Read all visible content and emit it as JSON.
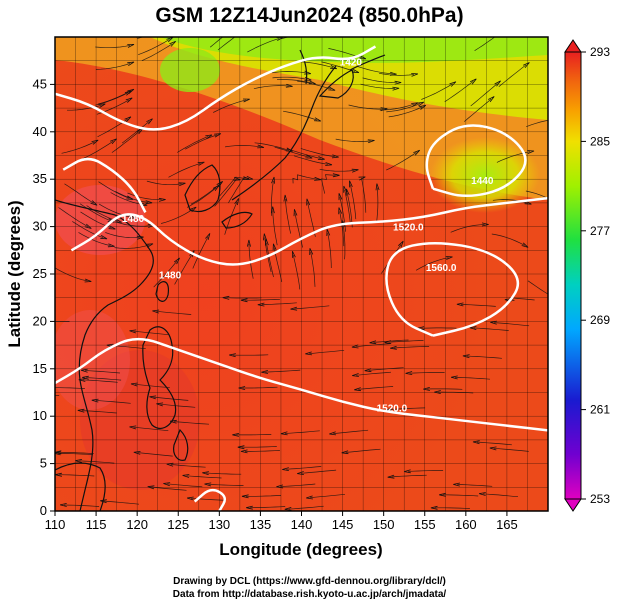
{
  "figure": {
    "title": "GSM 12Z14Jun2024 (850.0hPa)",
    "xlabel": "Longitude (degrees)",
    "ylabel": "Latitude  (degrees)",
    "credit_lines": [
      "Drawing by DCL (https://www.gfd-dennou.org/library/dcl/)",
      "Data from http://database.rish.kyoto-u.ac.jp/arch/jmadata/"
    ]
  },
  "chart_data": {
    "type": "heatmap",
    "field": "temperature (color) with height contours and wind streamlines",
    "xlim": [
      110,
      170
    ],
    "ylim": [
      0,
      50
    ],
    "x_ticks": [
      110,
      115,
      120,
      125,
      130,
      135,
      140,
      145,
      150,
      155,
      160,
      165
    ],
    "y_ticks": [
      0,
      5,
      10,
      15,
      20,
      25,
      30,
      35,
      40,
      45
    ],
    "colorbar": {
      "range": [
        253,
        293
      ],
      "ticks": [
        253,
        261,
        269,
        277,
        285,
        293
      ],
      "stops": [
        "#e000c0",
        "#7000d0",
        "#1a1ad0",
        "#00a8ff",
        "#00d0c0",
        "#20e040",
        "#a0f000",
        "#f0e000",
        "#f8a000",
        "#f06010",
        "#e82020"
      ]
    },
    "contour_labels": [
      {
        "text": "1520.0",
        "lon": 153,
        "lat": 29.6
      },
      {
        "text": "1560.0",
        "lon": 157,
        "lat": 25.3
      },
      {
        "text": "1520.0",
        "lon": 151,
        "lat": 10.5
      },
      {
        "text": "1440",
        "lon": 162,
        "lat": 34.5
      },
      {
        "text": "1480",
        "lon": 124,
        "lat": 24.5
      },
      {
        "text": "1480",
        "lon": 119.5,
        "lat": 30.5
      },
      {
        "text": "1420",
        "lon": 146,
        "lat": 47
      }
    ],
    "contours": [
      {
        "label": "1520.0 (northern)",
        "points": [
          [
            112,
            27.5
          ],
          [
            115,
            29
          ],
          [
            118,
            31.5
          ],
          [
            121,
            31
          ],
          [
            124,
            28.5
          ],
          [
            128,
            26.5
          ],
          [
            132,
            25.8
          ],
          [
            136,
            26.8
          ],
          [
            140,
            28.8
          ],
          [
            144,
            30.3
          ],
          [
            150,
            30.5
          ],
          [
            155,
            31
          ],
          [
            160,
            32
          ],
          [
            165,
            32.5
          ],
          [
            170,
            33
          ]
        ]
      },
      {
        "label": "1560.0 high",
        "points": [
          [
            156,
            18.5
          ],
          [
            161,
            19.5
          ],
          [
            165,
            21.5
          ],
          [
            167,
            24.5
          ],
          [
            163,
            27.5
          ],
          [
            156,
            28.5
          ],
          [
            151,
            27.5
          ],
          [
            150,
            24
          ],
          [
            152,
            20
          ],
          [
            156,
            18.5
          ]
        ]
      },
      {
        "label": "1520.0 (southern)",
        "points": [
          [
            110,
            13.5
          ],
          [
            113,
            15
          ],
          [
            116,
            17
          ],
          [
            120,
            18.5
          ],
          [
            125,
            17
          ],
          [
            130,
            15.5
          ],
          [
            135,
            14
          ],
          [
            140,
            12.8
          ],
          [
            145,
            11.5
          ],
          [
            150,
            10.5
          ],
          [
            155,
            10
          ],
          [
            160,
            9.5
          ],
          [
            165,
            9
          ],
          [
            170,
            8.5
          ]
        ]
      },
      {
        "label": "1440 low",
        "points": [
          [
            156,
            34
          ],
          [
            160,
            33
          ],
          [
            165,
            34
          ],
          [
            168,
            37
          ],
          [
            165,
            40
          ],
          [
            160,
            41
          ],
          [
            156,
            39
          ],
          [
            155,
            36.5
          ],
          [
            156,
            34
          ]
        ]
      },
      {
        "label": "1480 north",
        "points": [
          [
            110,
            44
          ],
          [
            114,
            43
          ],
          [
            118,
            41
          ],
          [
            122,
            40
          ],
          [
            126,
            41
          ],
          [
            130,
            43.5
          ],
          [
            134,
            45.5
          ],
          [
            138,
            47
          ],
          [
            142,
            48
          ],
          [
            146,
            47.5
          ],
          [
            149,
            49
          ]
        ]
      },
      {
        "label": "1480 west",
        "points": [
          [
            111,
            36
          ],
          [
            114,
            37.5
          ],
          [
            117,
            36
          ],
          [
            119.5,
            34
          ],
          [
            121,
            31.5
          ]
        ]
      },
      {
        "label": "1480 low bottom",
        "points": [
          [
            127,
            1
          ],
          [
            129,
            2.5
          ],
          [
            131,
            1.5
          ],
          [
            130,
            0
          ]
        ]
      }
    ],
    "region_labels": {
      "lon_range": "110E-170E",
      "lat_range": "0N-50N"
    }
  }
}
